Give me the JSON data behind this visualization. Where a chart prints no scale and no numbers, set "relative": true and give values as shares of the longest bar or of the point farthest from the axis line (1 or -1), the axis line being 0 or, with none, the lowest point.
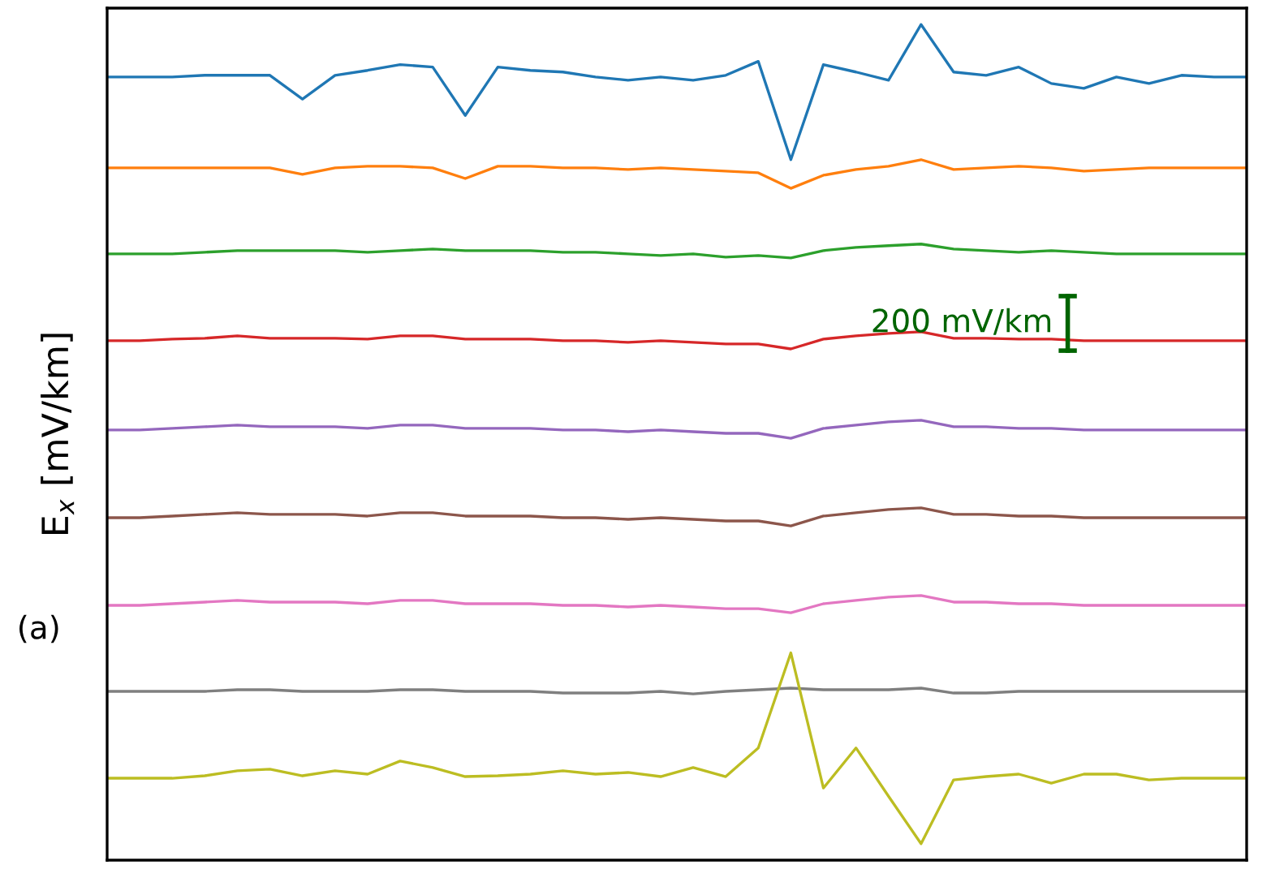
{
  "chart_data": {
    "type": "line",
    "relative": true,
    "ylabel": "E$_{x}$ [mV/km]",
    "annotations": [
      "200 mV/km",
      "(a)"
    ],
    "grid": false,
    "categories": [
      null,
      null,
      null,
      null,
      null,
      null,
      null,
      null,
      null,
      null,
      null,
      null,
      null,
      null,
      null,
      null,
      null,
      null,
      null,
      null,
      null,
      null,
      null,
      null,
      null,
      null,
      null,
      null,
      null,
      null,
      null,
      null,
      null,
      null,
      null,
      null
    ],
    "series": [
      {
        "color": "#1f77b4",
        "values": [
          0.936,
          0.936,
          0.936,
          0.938,
          0.938,
          0.938,
          0.909,
          0.938,
          0.944,
          0.951,
          0.948,
          0.889,
          0.948,
          0.944,
          0.942,
          0.936,
          0.932,
          0.936,
          0.932,
          0.938,
          0.955,
          0.835,
          0.951,
          0.942,
          0.932,
          1.0,
          0.942,
          0.938,
          0.948,
          0.928,
          0.922,
          0.936,
          0.928,
          0.938,
          0.936,
          0.936
        ]
      },
      {
        "color": "#ff7f0e",
        "values": [
          0.825,
          0.825,
          0.825,
          0.825,
          0.825,
          0.825,
          0.817,
          0.825,
          0.827,
          0.827,
          0.825,
          0.812,
          0.827,
          0.827,
          0.825,
          0.825,
          0.823,
          0.825,
          0.823,
          0.821,
          0.819,
          0.8,
          0.816,
          0.823,
          0.827,
          0.835,
          0.823,
          0.825,
          0.827,
          0.825,
          0.821,
          0.823,
          0.825,
          0.825,
          0.825,
          0.825
        ]
      },
      {
        "color": "#2ca02c",
        "values": [
          0.72,
          0.72,
          0.72,
          0.722,
          0.724,
          0.724,
          0.724,
          0.724,
          0.722,
          0.724,
          0.726,
          0.724,
          0.724,
          0.724,
          0.722,
          0.722,
          0.72,
          0.718,
          0.72,
          0.716,
          0.718,
          0.715,
          0.724,
          0.728,
          0.73,
          0.732,
          0.726,
          0.724,
          0.722,
          0.724,
          0.722,
          0.72,
          0.72,
          0.72,
          0.72,
          0.72
        ]
      },
      {
        "color": "#d62728",
        "values": [
          0.614,
          0.614,
          0.616,
          0.617,
          0.62,
          0.617,
          0.617,
          0.617,
          0.616,
          0.62,
          0.62,
          0.616,
          0.616,
          0.616,
          0.614,
          0.614,
          0.612,
          0.614,
          0.612,
          0.61,
          0.61,
          0.604,
          0.616,
          0.62,
          0.623,
          0.625,
          0.617,
          0.617,
          0.616,
          0.616,
          0.614,
          0.614,
          0.614,
          0.614,
          0.614,
          0.614
        ]
      },
      {
        "color": "#9467bd",
        "values": [
          0.505,
          0.505,
          0.507,
          0.509,
          0.511,
          0.509,
          0.509,
          0.509,
          0.507,
          0.511,
          0.511,
          0.507,
          0.507,
          0.507,
          0.505,
          0.505,
          0.503,
          0.505,
          0.503,
          0.501,
          0.501,
          0.495,
          0.507,
          0.511,
          0.515,
          0.517,
          0.509,
          0.509,
          0.507,
          0.507,
          0.505,
          0.505,
          0.505,
          0.505,
          0.505,
          0.505
        ]
      },
      {
        "color": "#8c564b",
        "values": [
          0.398,
          0.398,
          0.4,
          0.402,
          0.404,
          0.402,
          0.402,
          0.402,
          0.4,
          0.404,
          0.404,
          0.4,
          0.4,
          0.4,
          0.398,
          0.398,
          0.396,
          0.398,
          0.396,
          0.394,
          0.394,
          0.388,
          0.4,
          0.404,
          0.408,
          0.41,
          0.402,
          0.402,
          0.4,
          0.4,
          0.398,
          0.398,
          0.398,
          0.398,
          0.398,
          0.398
        ]
      },
      {
        "color": "#e377c2",
        "values": [
          0.291,
          0.291,
          0.293,
          0.295,
          0.297,
          0.295,
          0.295,
          0.295,
          0.293,
          0.297,
          0.297,
          0.293,
          0.293,
          0.293,
          0.291,
          0.291,
          0.289,
          0.291,
          0.289,
          0.287,
          0.287,
          0.282,
          0.293,
          0.297,
          0.301,
          0.303,
          0.295,
          0.295,
          0.293,
          0.293,
          0.291,
          0.291,
          0.291,
          0.291,
          0.291,
          0.291
        ]
      },
      {
        "color": "#7f7f7f",
        "values": [
          0.186,
          0.186,
          0.186,
          0.186,
          0.188,
          0.188,
          0.186,
          0.186,
          0.186,
          0.188,
          0.188,
          0.186,
          0.186,
          0.186,
          0.184,
          0.184,
          0.184,
          0.186,
          0.183,
          0.186,
          0.188,
          0.19,
          0.188,
          0.188,
          0.188,
          0.19,
          0.184,
          0.184,
          0.186,
          0.186,
          0.186,
          0.186,
          0.186,
          0.186,
          0.186,
          0.186
        ]
      },
      {
        "color": "#bcbd22",
        "values": [
          0.08,
          0.08,
          0.08,
          0.083,
          0.089,
          0.091,
          0.083,
          0.089,
          0.085,
          0.101,
          0.093,
          0.082,
          0.083,
          0.085,
          0.089,
          0.085,
          0.087,
          0.082,
          0.093,
          0.082,
          0.117,
          0.233,
          0.068,
          0.117,
          0.058,
          0.0,
          0.078,
          0.082,
          0.085,
          0.074,
          0.085,
          0.085,
          0.078,
          0.08,
          0.08,
          0.08
        ]
      }
    ]
  }
}
